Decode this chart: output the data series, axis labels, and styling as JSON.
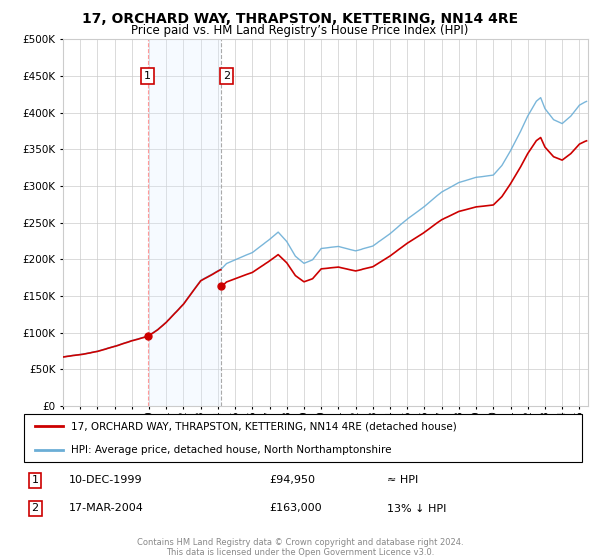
{
  "title": "17, ORCHARD WAY, THRAPSTON, KETTERING, NN14 4RE",
  "subtitle": "Price paid vs. HM Land Registry’s House Price Index (HPI)",
  "hpi_line_color": "#6baed6",
  "price_line_color": "#cc0000",
  "sale1_year_val": 1999.917,
  "sale1_price": 94950,
  "sale1_label": "1",
  "sale2_year_val": 2004.208,
  "sale2_price": 163000,
  "sale2_label": "2",
  "legend_entry1": "17, ORCHARD WAY, THRAPSTON, KETTERING, NN14 4RE (detached house)",
  "legend_entry2": "HPI: Average price, detached house, North Northamptonshire",
  "table_row1": [
    "1",
    "10-DEC-1999",
    "£94,950",
    "≈ HPI"
  ],
  "table_row2": [
    "2",
    "17-MAR-2004",
    "£163,000",
    "13% ↓ HPI"
  ],
  "footer1": "Contains HM Land Registry data © Crown copyright and database right 2024.",
  "footer2": "This data is licensed under the Open Government Licence v3.0.",
  "ylim": [
    0,
    500000
  ],
  "yticks": [
    0,
    50000,
    100000,
    150000,
    200000,
    250000,
    300000,
    350000,
    400000,
    450000,
    500000
  ],
  "xstart": 1995.0,
  "xend": 2025.5,
  "background_color": "#ffffff",
  "plot_bg_color": "#ffffff",
  "grid_color": "#cccccc",
  "shade_color": "#ddeeff",
  "vline_color": "#ffaaaa",
  "dashed_color": "#aaaaaa"
}
